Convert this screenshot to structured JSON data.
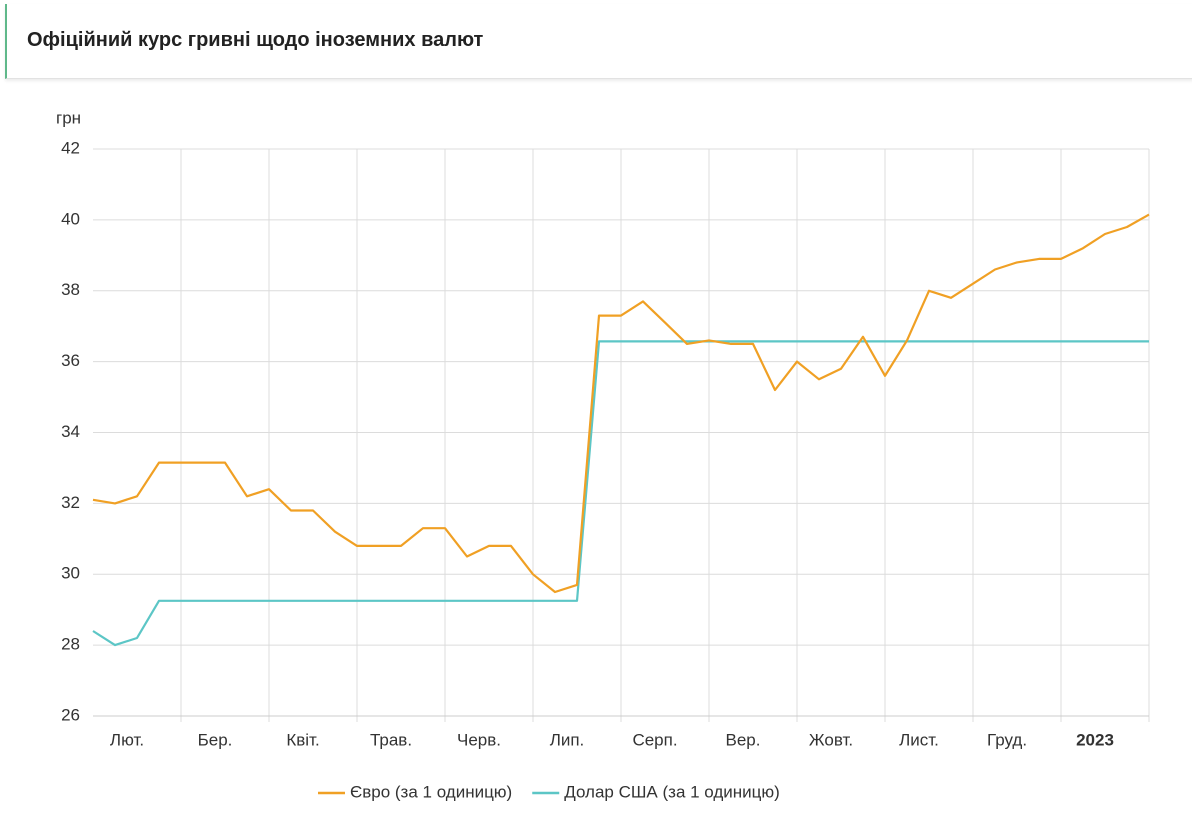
{
  "header": {
    "title": "Офіційний курс гривні щодо іноземних валют"
  },
  "chart_data": {
    "type": "line",
    "y_label": "грн",
    "categories": [
      null,
      null,
      "Лют.",
      null,
      null,
      null,
      "Бер.",
      null,
      null,
      null,
      "Квіт.",
      null,
      null,
      null,
      "Трав.",
      null,
      null,
      null,
      "Черв.",
      null,
      null,
      null,
      "Лип.",
      null,
      null,
      null,
      "Серп.",
      null,
      null,
      null,
      "Вер.",
      null,
      null,
      null,
      "Жовт.",
      null,
      null,
      null,
      "Лист.",
      null,
      null,
      null,
      "Груд.",
      null,
      null,
      null,
      "2023",
      null,
      null
    ],
    "series": [
      {
        "name": "Євро (за 1 одиницю)",
        "color": "#f0a024",
        "values": [
          32.1,
          32.0,
          32.2,
          33.15,
          33.15,
          33.15,
          33.15,
          32.2,
          32.4,
          31.8,
          31.8,
          31.2,
          30.8,
          30.8,
          30.8,
          31.3,
          31.3,
          30.5,
          30.8,
          30.8,
          30.0,
          29.5,
          29.7,
          37.3,
          37.3,
          37.7,
          37.1,
          36.5,
          36.6,
          36.5,
          36.5,
          35.2,
          36.0,
          35.5,
          35.8,
          36.7,
          35.6,
          36.6,
          38.0,
          37.8,
          38.2,
          38.6,
          38.8,
          38.9,
          38.9,
          39.2,
          39.6,
          39.8,
          40.15
        ]
      },
      {
        "name": "Долар США (за 1 одиницю)",
        "color": "#5cc6c6",
        "values": [
          28.4,
          28.0,
          28.2,
          29.25,
          29.25,
          29.25,
          29.25,
          29.25,
          29.25,
          29.25,
          29.25,
          29.25,
          29.25,
          29.25,
          29.25,
          29.25,
          29.25,
          29.25,
          29.25,
          29.25,
          29.25,
          29.25,
          29.25,
          36.57,
          36.57,
          36.57,
          36.57,
          36.57,
          36.57,
          36.57,
          36.57,
          36.57,
          36.57,
          36.57,
          36.57,
          36.57,
          36.57,
          36.57,
          36.57,
          36.57,
          36.57,
          36.57,
          36.57,
          36.57,
          36.57,
          36.57,
          36.57,
          36.57,
          36.57
        ]
      }
    ],
    "ylim": [
      26,
      42
    ],
    "yticks": [
      26,
      28,
      30,
      32,
      34,
      36,
      38,
      40,
      42
    ],
    "grid": true
  }
}
